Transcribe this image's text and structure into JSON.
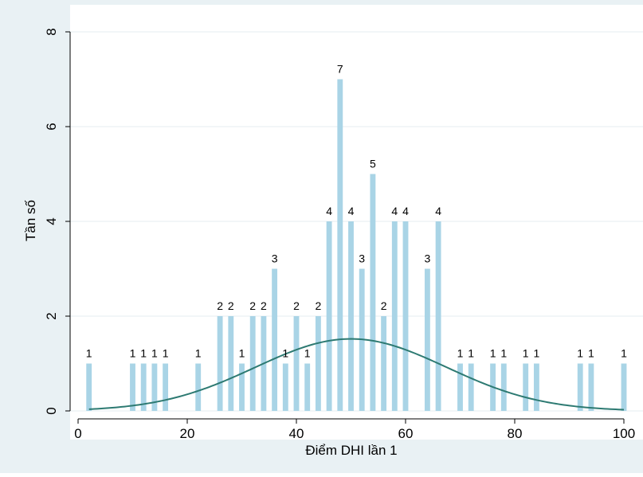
{
  "colors": {
    "outer_background": "#e9f1f4",
    "plot_background": "#ffffff",
    "bar_fill": "#a9d4e6",
    "curve_stroke": "#2d7a72",
    "grid": "#e4eef2",
    "axis": "#000000"
  },
  "chart_data": {
    "type": "bar",
    "xlabel": "Điểm DHI lần 1",
    "ylabel": "Tần số",
    "xlim": [
      0,
      100
    ],
    "ylim": [
      0,
      8
    ],
    "x_ticks": [
      0,
      20,
      40,
      60,
      80,
      100
    ],
    "y_ticks": [
      0,
      2,
      4,
      6,
      8
    ],
    "grid": "horizontal",
    "bar_width": 1,
    "bars": [
      {
        "x": 2,
        "value": 1,
        "label": "1"
      },
      {
        "x": 10,
        "value": 1,
        "label": "1"
      },
      {
        "x": 12,
        "value": 1,
        "label": "1"
      },
      {
        "x": 14,
        "value": 1,
        "label": "1"
      },
      {
        "x": 16,
        "value": 1,
        "label": "1"
      },
      {
        "x": 22,
        "value": 1,
        "label": "1"
      },
      {
        "x": 26,
        "value": 2,
        "label": "2"
      },
      {
        "x": 28,
        "value": 2,
        "label": "2"
      },
      {
        "x": 30,
        "value": 1,
        "label": "1"
      },
      {
        "x": 32,
        "value": 2,
        "label": "2"
      },
      {
        "x": 34,
        "value": 2,
        "label": "2"
      },
      {
        "x": 36,
        "value": 3,
        "label": "3"
      },
      {
        "x": 38,
        "value": 1,
        "label": "1"
      },
      {
        "x": 40,
        "value": 2,
        "label": "2"
      },
      {
        "x": 42,
        "value": 1,
        "label": "1"
      },
      {
        "x": 44,
        "value": 2,
        "label": "2"
      },
      {
        "x": 46,
        "value": 4,
        "label": "4"
      },
      {
        "x": 48,
        "value": 7,
        "label": "7"
      },
      {
        "x": 50,
        "value": 4,
        "label": "4"
      },
      {
        "x": 52,
        "value": 3,
        "label": "3"
      },
      {
        "x": 54,
        "value": 5,
        "label": "5"
      },
      {
        "x": 56,
        "value": 2,
        "label": "2"
      },
      {
        "x": 58,
        "value": 4,
        "label": "4"
      },
      {
        "x": 60,
        "value": 4,
        "label": "4"
      },
      {
        "x": 64,
        "value": 3,
        "label": "3"
      },
      {
        "x": 66,
        "value": 4,
        "label": "4"
      },
      {
        "x": 70,
        "value": 1,
        "label": "1"
      },
      {
        "x": 72,
        "value": 1,
        "label": "1"
      },
      {
        "x": 76,
        "value": 1,
        "label": "1"
      },
      {
        "x": 78,
        "value": 1,
        "label": "1"
      },
      {
        "x": 82,
        "value": 1,
        "label": "1"
      },
      {
        "x": 84,
        "value": 1,
        "label": "1"
      },
      {
        "x": 92,
        "value": 1,
        "label": "1"
      },
      {
        "x": 94,
        "value": 1,
        "label": "1"
      },
      {
        "x": 100,
        "value": 1,
        "label": "1"
      }
    ],
    "overlay": {
      "type": "normal_curve",
      "mean": 50,
      "sd": 17.5,
      "peak": 1.52,
      "x_range": [
        2,
        100
      ]
    }
  }
}
